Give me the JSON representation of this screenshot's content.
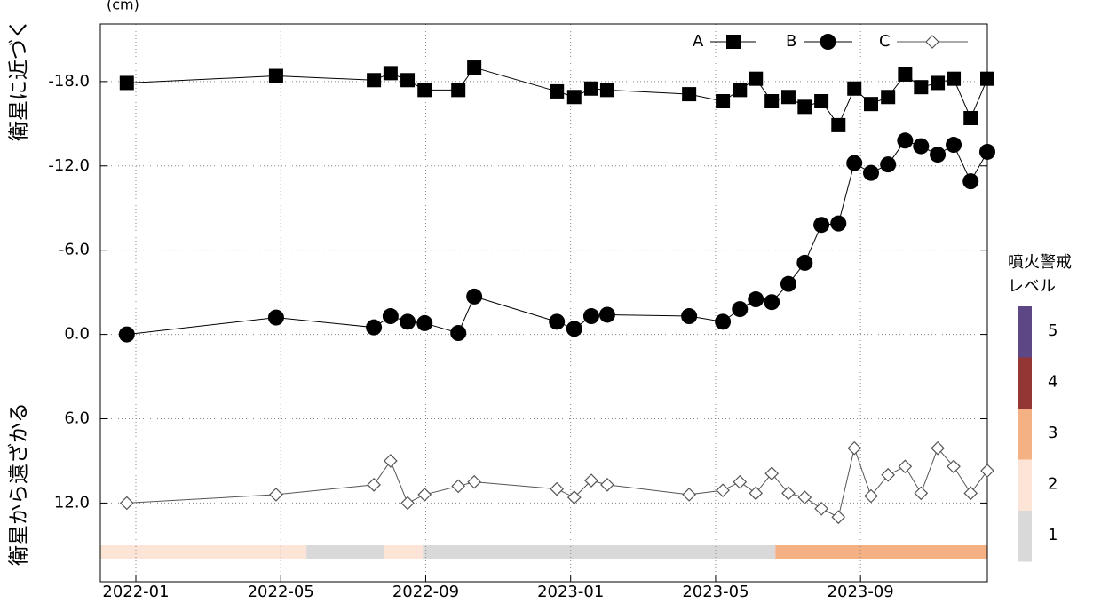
{
  "chart_data": {
    "type": "line",
    "unit_label": "(cm)",
    "y_label_top": "衛星に近づく",
    "y_label_bottom": "衛星から遠ざかる",
    "x": [
      -0.25,
      3.87,
      6.57,
      7.03,
      7.5,
      7.97,
      8.9,
      9.34,
      11.62,
      12.1,
      12.57,
      13.01,
      15.27,
      16.2,
      16.67,
      17.11,
      17.55,
      18.01,
      18.46,
      18.92,
      19.39,
      19.83,
      20.29,
      20.76,
      21.23,
      21.67,
      22.13,
      22.57,
      23.04,
      23.5
    ],
    "series": [
      {
        "name": "A",
        "color": "#000000",
        "marker": "square",
        "values": [
          -17.9,
          -18.4,
          -18.1,
          -18.6,
          -18.1,
          -17.4,
          -17.4,
          -19.0,
          -17.3,
          -16.9,
          -17.5,
          -17.4,
          -17.1,
          -16.6,
          -17.4,
          -18.2,
          -16.6,
          -16.9,
          -16.2,
          -16.6,
          -14.9,
          -17.5,
          -16.4,
          -16.9,
          -18.5,
          -17.6,
          -17.9,
          -18.2,
          -15.4,
          -18.2
        ]
      },
      {
        "name": "B",
        "color": "#000000",
        "marker": "circle",
        "values": [
          0.0,
          -1.2,
          -0.5,
          -1.3,
          -0.9,
          -0.8,
          -0.1,
          -2.7,
          -0.9,
          -0.4,
          -1.3,
          -1.4,
          -1.3,
          -0.9,
          -1.8,
          -2.5,
          -2.3,
          -3.6,
          -5.1,
          -7.8,
          -7.9,
          -12.2,
          -11.5,
          -12.1,
          -13.8,
          -13.4,
          -12.8,
          -13.5,
          -10.9,
          -13.0
        ]
      },
      {
        "name": "C",
        "color": "#555555",
        "marker": "diamond-open",
        "values": [
          12.0,
          11.4,
          10.7,
          9.0,
          12.0,
          11.4,
          10.8,
          10.5,
          11.0,
          11.6,
          10.4,
          10.7,
          11.4,
          11.1,
          10.5,
          11.3,
          9.9,
          11.3,
          11.6,
          12.4,
          13.0,
          8.1,
          11.5,
          10.0,
          9.4,
          11.3,
          8.1,
          9.4,
          11.3,
          9.7
        ]
      }
    ],
    "xlim": [
      -0.98,
      23.5
    ],
    "xticks": [
      {
        "value": 0,
        "label": "2022-01"
      },
      {
        "value": 4,
        "label": "2022-05"
      },
      {
        "value": 8,
        "label": "2022-09"
      },
      {
        "value": 12,
        "label": "2023-01"
      },
      {
        "value": 16,
        "label": "2023-05"
      },
      {
        "value": 20,
        "label": "2023-09"
      }
    ],
    "ylim": [
      -22.1,
      17.6
    ],
    "y_reversed": true,
    "yticks": [
      {
        "value": -18,
        "label": "-18.0"
      },
      {
        "value": -12,
        "label": "-12.0"
      },
      {
        "value": -6,
        "label": "-6.0"
      },
      {
        "value": 0,
        "label": "0.0"
      },
      {
        "value": 6,
        "label": "6.0"
      },
      {
        "value": 12,
        "label": "12.0"
      }
    ],
    "grid": true,
    "legend": "top-right",
    "alert_levels": {
      "title": [
        "噴火警戒",
        "レベル"
      ],
      "levels": [
        {
          "label": 1,
          "color": "#d9d9d9"
        },
        {
          "label": 2,
          "color": "#fce4d6"
        },
        {
          "label": 3,
          "color": "#f4b183"
        },
        {
          "label": 4,
          "color": "#943634"
        },
        {
          "label": 5,
          "color": "#5e4785"
        }
      ],
      "periods": [
        {
          "start": -0.98,
          "end": 4.71,
          "level": 2
        },
        {
          "start": 4.71,
          "end": 6.86,
          "level": 1
        },
        {
          "start": 6.86,
          "end": 7.92,
          "level": 2
        },
        {
          "start": 7.92,
          "end": 17.65,
          "level": 1
        },
        {
          "start": 17.65,
          "end": 23.5,
          "level": 3
        }
      ]
    }
  }
}
